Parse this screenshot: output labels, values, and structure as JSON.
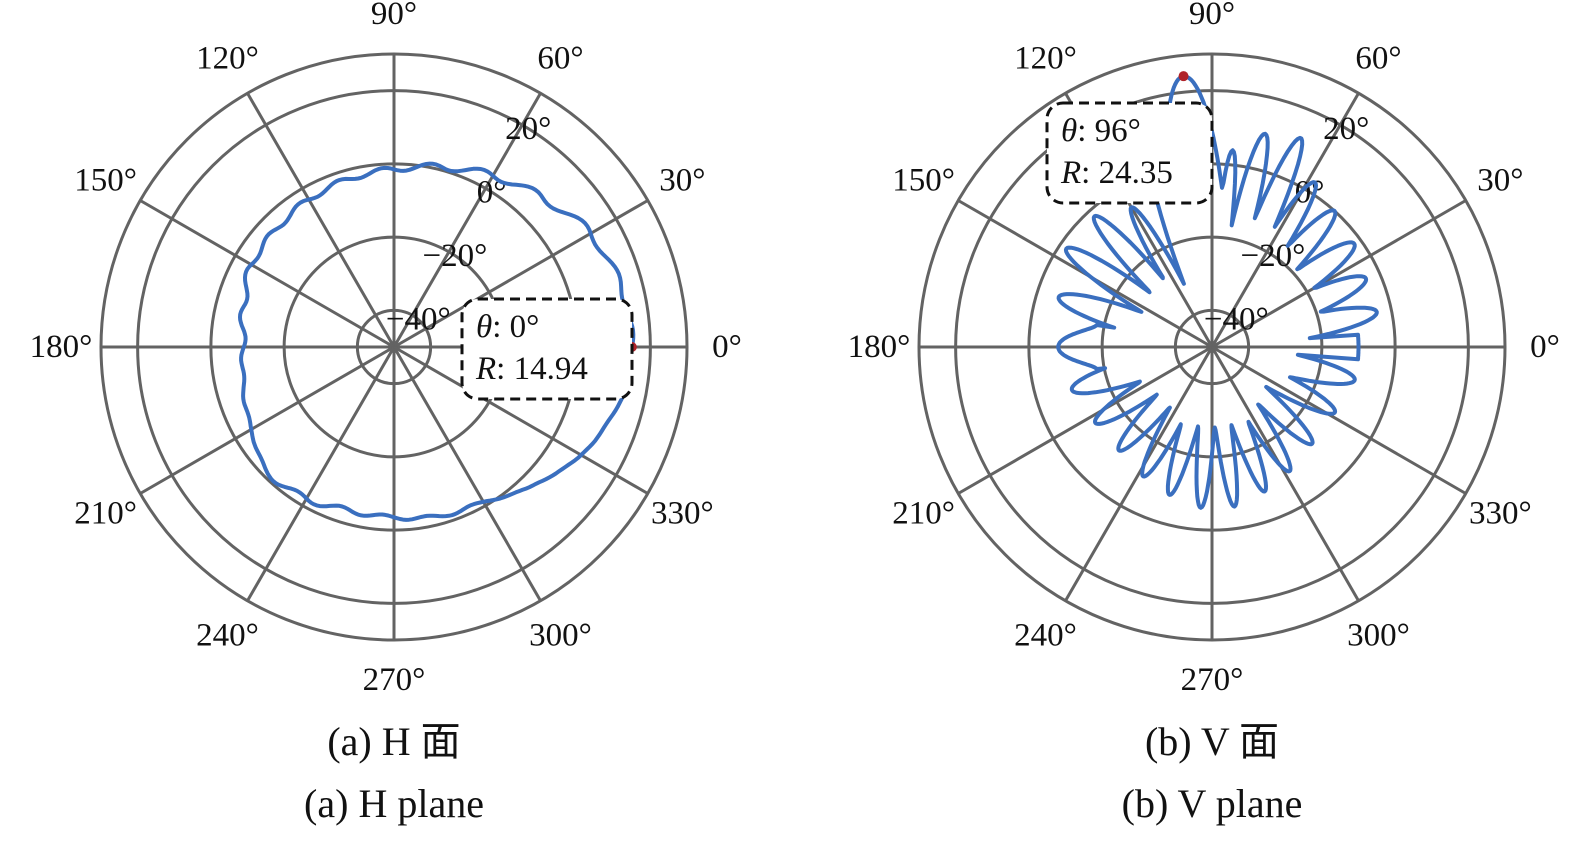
{
  "chart_data": [
    {
      "type": "polar-line",
      "caption_cn": "(a) H 面",
      "caption_en": "(a) H plane",
      "r_ticks": [
        -40,
        -20,
        0,
        20
      ],
      "r_tick_labels": [
        "−40°",
        "−20°",
        "0°",
        "20°"
      ],
      "rlim": [
        -50,
        30
      ],
      "theta_ticks": [
        0,
        30,
        60,
        90,
        120,
        150,
        180,
        210,
        240,
        270,
        300,
        330
      ],
      "theta_tick_labels": [
        "0°",
        "30°",
        "60°",
        "90°",
        "120°",
        "150°",
        "180°",
        "210°",
        "240°",
        "270°",
        "300°",
        "330°"
      ],
      "series_color": "#3a6fbf",
      "theta": [
        0,
        15,
        30,
        45,
        60,
        75,
        90,
        105,
        120,
        135,
        150,
        165,
        180,
        195,
        210,
        225,
        240,
        255,
        270,
        285,
        300,
        315,
        330,
        345,
        360
      ],
      "r": [
        14.94,
        14.2,
        12.0,
        7.5,
        4.0,
        0.8,
        -1.5,
        -2.5,
        -3.5,
        -4.5,
        -5.0,
        -7.5,
        -9.0,
        -7.5,
        -5.0,
        -1.2,
        -2.2,
        -3.8,
        -3.5,
        -2.2,
        -1.2,
        3.5,
        9.0,
        13.2,
        14.94
      ],
      "marker": {
        "theta": 0,
        "r": 14.94
      },
      "datatip": {
        "theta_label": "θ",
        "theta_value": ": 0°",
        "r_label": "R",
        "r_value": ": 14.94"
      }
    },
    {
      "type": "polar-line",
      "caption_cn": "(b) V 面",
      "caption_en": "(b) V plane",
      "r_ticks": [
        -40,
        -20,
        0,
        20
      ],
      "r_tick_labels": [
        "−40°",
        "−20°",
        "0°",
        "20°"
      ],
      "rlim": [
        -50,
        30
      ],
      "theta_ticks": [
        0,
        30,
        60,
        90,
        120,
        150,
        180,
        210,
        240,
        270,
        300,
        330
      ],
      "theta_tick_labels": [
        "0°",
        "30°",
        "60°",
        "90°",
        "120°",
        "150°",
        "180°",
        "210°",
        "240°",
        "270°",
        "300°",
        "330°"
      ],
      "series_color": "#3a6fbf",
      "lobes": [
        {
          "center": 0,
          "width": 5,
          "peak": -10,
          "null": -10
        },
        {
          "center": 12,
          "width": 11,
          "peak": -4,
          "null": -36
        },
        {
          "center": 24,
          "width": 11,
          "peak": -4,
          "null": -34
        },
        {
          "center": 36,
          "width": 11,
          "peak": -2,
          "null": -34
        },
        {
          "center": 48,
          "width": 10,
          "peak": 0,
          "null": -36
        },
        {
          "center": 58,
          "width": 9,
          "peak": 3,
          "null": -36
        },
        {
          "center": 67,
          "width": 8,
          "peak": 12,
          "null": -36
        },
        {
          "center": 76,
          "width": 8,
          "peak": 10,
          "null": -36
        },
        {
          "center": 84,
          "width": 6,
          "peak": 4,
          "null": -40
        },
        {
          "center": 96,
          "width": 12,
          "peak": 24.35,
          "null": -12
        },
        {
          "center": 108,
          "width": 7,
          "peak": 2,
          "null": -35
        },
        {
          "center": 120,
          "width": 8,
          "peak": -6,
          "null": -38
        },
        {
          "center": 132,
          "width": 9,
          "peak": -2,
          "null": -36
        },
        {
          "center": 146,
          "width": 10,
          "peak": -2,
          "null": -36
        },
        {
          "center": 162,
          "width": 11,
          "peak": -6,
          "null": -34
        },
        {
          "center": 180,
          "width": 11,
          "peak": -8,
          "null": -18
        },
        {
          "center": 197,
          "width": 11,
          "peak": -10,
          "null": -32
        },
        {
          "center": 213,
          "width": 10,
          "peak": -12,
          "null": -34
        },
        {
          "center": 228,
          "width": 9,
          "peak": -12,
          "null": -34
        },
        {
          "center": 242,
          "width": 8,
          "peak": -10,
          "null": -32
        },
        {
          "center": 254,
          "width": 7,
          "peak": -8,
          "null": -30
        },
        {
          "center": 266,
          "width": 6,
          "peak": -6,
          "null": -28
        },
        {
          "center": 278,
          "width": 6,
          "peak": -6,
          "null": -28
        },
        {
          "center": 290,
          "width": 7,
          "peak": -8,
          "null": -30
        },
        {
          "center": 302,
          "width": 8,
          "peak": -10,
          "null": -32
        },
        {
          "center": 316,
          "width": 9,
          "peak": -12,
          "null": -34
        },
        {
          "center": 332,
          "width": 10,
          "peak": -12,
          "null": -34
        },
        {
          "center": 347,
          "width": 10,
          "peak": -10,
          "null": -30
        }
      ],
      "marker": {
        "theta": 96,
        "r": 24.35
      },
      "datatip": {
        "theta_label": "θ",
        "theta_value": ": 96°",
        "r_label": "R",
        "r_value": ": 24.35"
      }
    }
  ]
}
